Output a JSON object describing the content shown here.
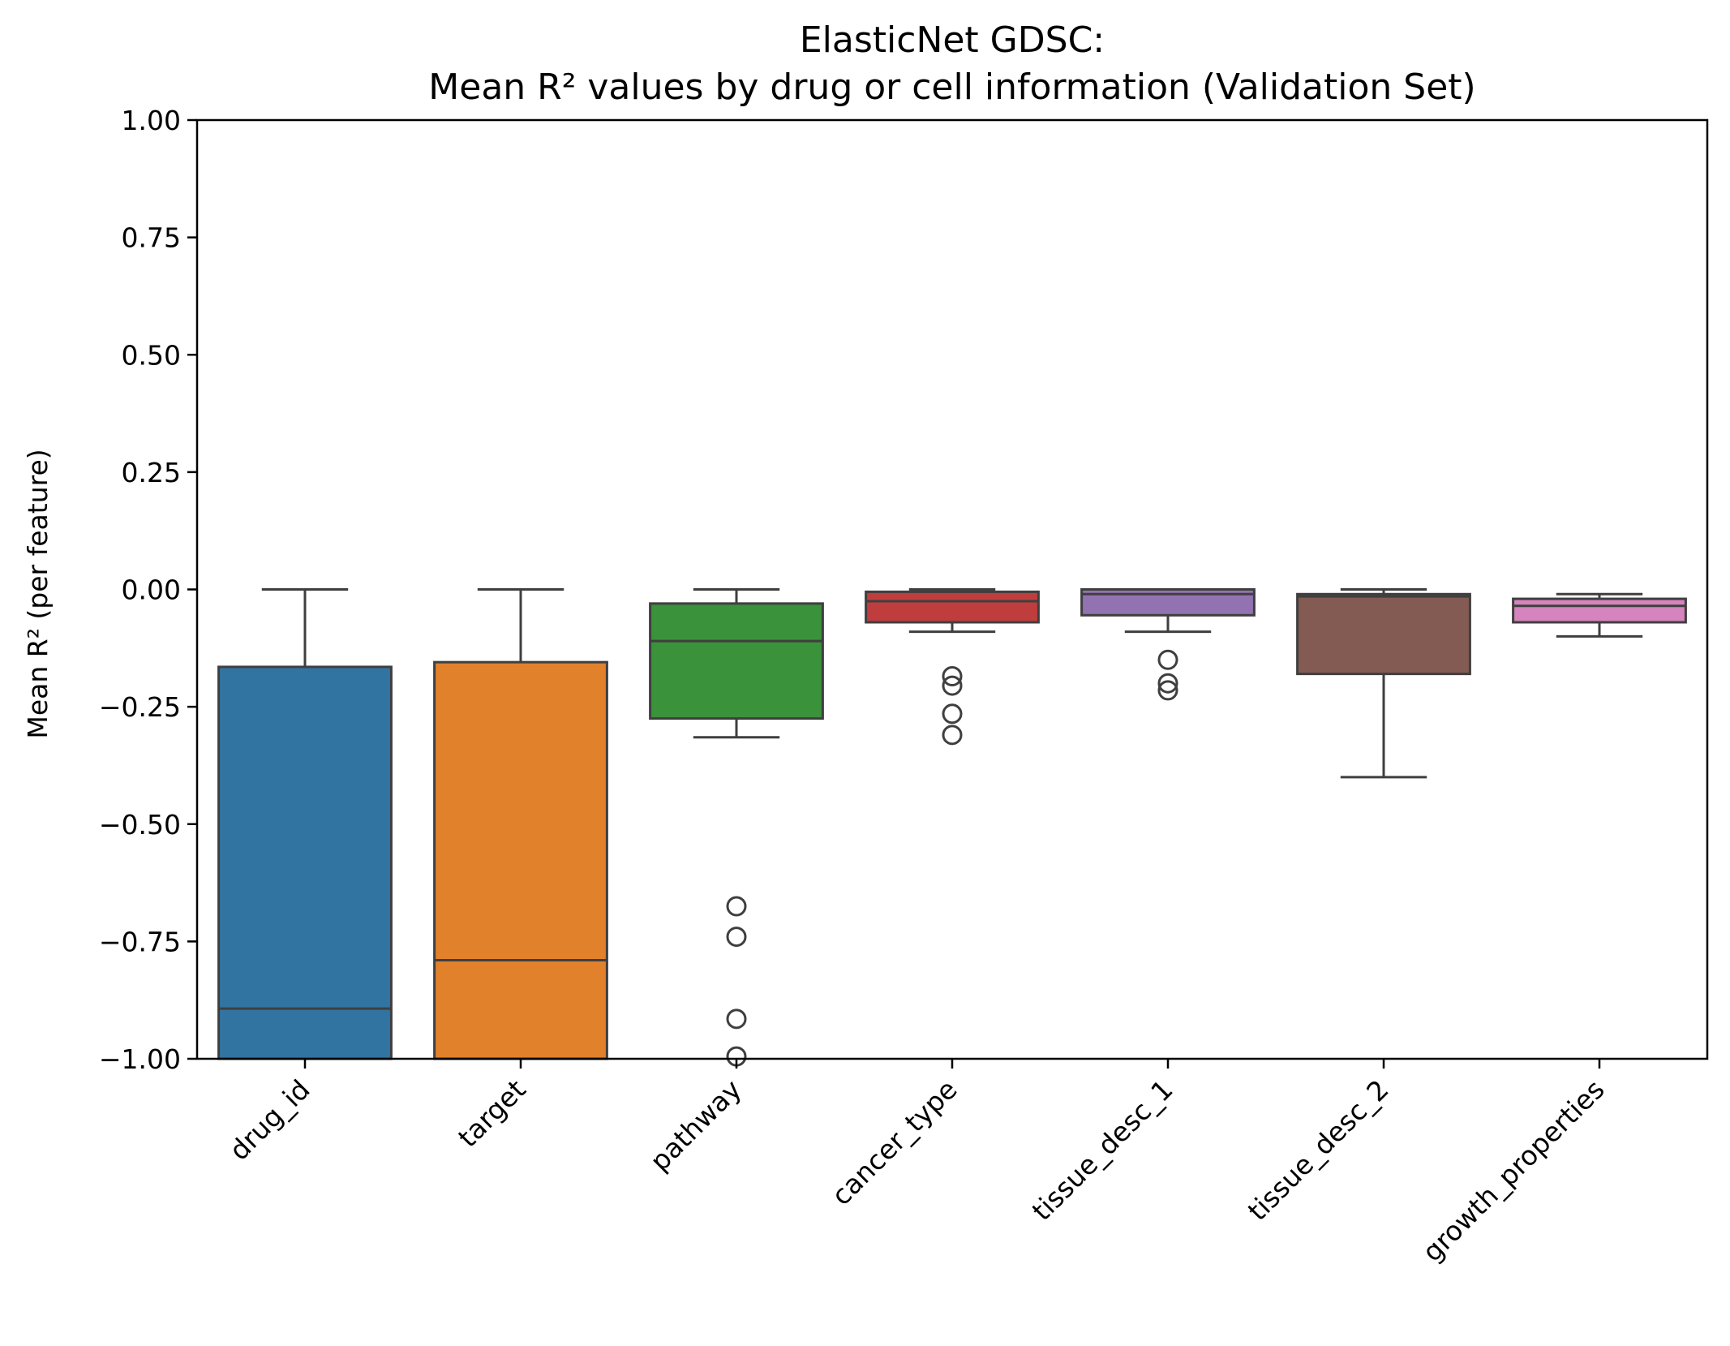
{
  "chart_data": {
    "type": "box",
    "title": "ElasticNet GDSC:",
    "subtitle": "Mean R² values by drug or cell information (Validation Set)",
    "xlabel": "",
    "ylabel": "Mean R² (per feature)",
    "ylim": [
      -1.0,
      1.0
    ],
    "yticks": [
      -1.0,
      -0.75,
      -0.5,
      -0.25,
      0.0,
      0.25,
      0.5,
      0.75,
      1.0
    ],
    "ytick_labels": [
      "−1.00",
      "−0.75",
      "−0.50",
      "−0.25",
      "0.00",
      "0.25",
      "0.50",
      "0.75",
      "1.00"
    ],
    "grid": false,
    "categories": [
      "drug_id",
      "target",
      "pathway",
      "cancer_type",
      "tissue_desc_1",
      "tissue_desc_2",
      "growth_properties"
    ],
    "boxes": [
      {
        "category": "drug_id",
        "color": "#3274a1",
        "whisker_low": -1.0,
        "q1": -1.0,
        "median": -0.893,
        "q3": -0.165,
        "whisker_high": 0.0,
        "outliers": []
      },
      {
        "category": "target",
        "color": "#e1812c",
        "whisker_low": -1.0,
        "q1": -1.0,
        "median": -0.79,
        "q3": -0.155,
        "whisker_high": 0.0,
        "outliers": []
      },
      {
        "category": "pathway",
        "color": "#3a923a",
        "whisker_low": -0.315,
        "q1": -0.275,
        "median": -0.11,
        "q3": -0.03,
        "whisker_high": 0.0,
        "outliers": [
          -0.675,
          -0.74,
          -0.915,
          -0.995
        ]
      },
      {
        "category": "cancer_type",
        "color": "#c03d3e",
        "whisker_low": -0.09,
        "q1": -0.07,
        "median": -0.025,
        "q3": -0.005,
        "whisker_high": 0.0,
        "outliers": [
          -0.185,
          -0.205,
          -0.265,
          -0.31
        ]
      },
      {
        "category": "tissue_desc_1",
        "color": "#9372b2",
        "whisker_low": -0.09,
        "q1": -0.055,
        "median": -0.01,
        "q3": 0.0,
        "whisker_high": 0.0,
        "outliers": [
          -0.15,
          -0.2,
          -0.215
        ]
      },
      {
        "category": "tissue_desc_2",
        "color": "#845b53",
        "whisker_low": -0.4,
        "q1": -0.18,
        "median": -0.015,
        "q3": -0.01,
        "whisker_high": 0.0,
        "outliers": []
      },
      {
        "category": "growth_properties",
        "color": "#d684bd",
        "whisker_low": -0.1,
        "q1": -0.07,
        "median": -0.035,
        "q3": -0.02,
        "whisker_high": -0.01,
        "outliers": []
      }
    ]
  }
}
